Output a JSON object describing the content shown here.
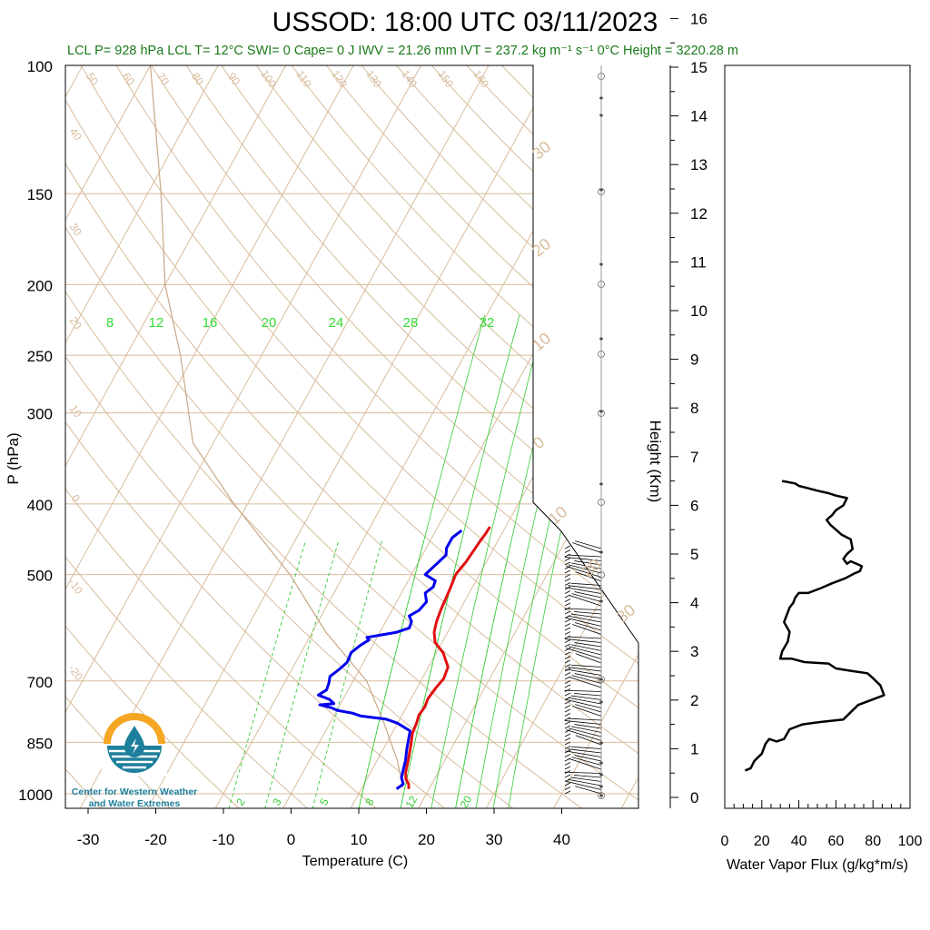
{
  "header": {
    "title": "USSOD: 18:00 UTC 03/11/2023",
    "subtitle": "LCL P= 928 hPa  LCL T= 12°C  SWI= 0  Cape= 0 J  IWV = 21.26 mm  IVT = 237.2 kg m⁻¹ s⁻¹  0°C Height = 3220.28 m"
  },
  "logo": {
    "line1": "Center for Western Weather",
    "line2": "and Water Extremes"
  },
  "colors": {
    "temperature": "#e01010",
    "dewpoint": "#0000ee",
    "isotherm": "#d8bc9c",
    "mixing_ratio": "#33cc33",
    "dry_adiabat": "#d8bc9c",
    "subtitle": "#1a7a1a",
    "logo_orange": "#f5a623",
    "logo_blue": "#1e7f9c"
  },
  "chart_data": [
    {
      "type": "line",
      "chart": "skew-T log-P sounding",
      "xlabel": "Temperature (C)",
      "ylabel": "P (hPa)",
      "right_ylabel": "Height (Km)",
      "x_ticks": [
        "-30",
        "-20",
        "-10",
        "0",
        "10",
        "20",
        "30",
        "40"
      ],
      "y_ticks": [
        "100",
        "150",
        "200",
        "250",
        "300",
        "400",
        "500",
        "700",
        "850",
        "1000"
      ],
      "height_ticks": [
        "0",
        "1",
        "2",
        "3",
        "4",
        "5",
        "6",
        "7",
        "8",
        "9",
        "10",
        "11",
        "12",
        "13",
        "14",
        "15",
        "16"
      ],
      "xlim": [
        -34,
        52
      ],
      "ylim": [
        1050,
        100
      ],
      "y_scale": "log",
      "mixing_ratio_top_labels": [
        "8",
        "12",
        "16",
        "20",
        "24",
        "28",
        "32"
      ],
      "mixing_ratio_bottom_labels": [
        "2",
        "3",
        "5",
        "8",
        "12",
        "20"
      ],
      "dry_adiabat_labels": [
        "50",
        "60",
        "70",
        "80",
        "90",
        "100",
        "110",
        "120",
        "130",
        "140",
        "150",
        "160"
      ],
      "isotherm_left_labels": [
        "40",
        "30",
        "20",
        "10",
        "0",
        "-10",
        "-20"
      ],
      "isotherm_right_labels": [
        "30",
        "20",
        "10",
        "0",
        "-10",
        "-20",
        "-30"
      ],
      "series": [
        {
          "name": "Temperature",
          "points": [
            [
              17.0,
              985
            ],
            [
              16.6,
              970
            ],
            [
              15.8,
              955
            ],
            [
              15.2,
              935
            ],
            [
              14.6,
              900
            ],
            [
              13.8,
              860
            ],
            [
              13.0,
              825
            ],
            [
              12.8,
              800
            ],
            [
              12.5,
              780
            ],
            [
              12.7,
              760
            ],
            [
              12.5,
              740
            ],
            [
              12.8,
              715
            ],
            [
              13.2,
              695
            ],
            [
              12.9,
              670
            ],
            [
              11.0,
              640
            ],
            [
              9.0,
              620
            ],
            [
              8.0,
              600
            ],
            [
              7.5,
              580
            ],
            [
              7.2,
              560
            ],
            [
              7.0,
              540
            ],
            [
              6.8,
              520
            ],
            [
              6.5,
              500
            ],
            [
              7.0,
              480
            ],
            [
              7.2,
              465
            ],
            [
              7.4,
              450
            ],
            [
              7.6,
              440
            ],
            [
              7.7,
              430
            ]
          ]
        },
        {
          "name": "Dewpoint",
          "points": [
            [
              15.2,
              985
            ],
            [
              15.8,
              970
            ],
            [
              15.0,
              950
            ],
            [
              14.6,
              925
            ],
            [
              14.2,
              900
            ],
            [
              13.5,
              870
            ],
            [
              13.0,
              845
            ],
            [
              12.5,
              820
            ],
            [
              10.0,
              800
            ],
            [
              9.0,
              795
            ],
            [
              8.0,
              790
            ],
            [
              4.0,
              782
            ],
            [
              2.5,
              775
            ],
            [
              0.0,
              768
            ],
            [
              -1.0,
              762
            ],
            [
              -3.0,
              755
            ],
            [
              -1.0,
              752
            ],
            [
              -2.0,
              742
            ],
            [
              -4.0,
              732
            ],
            [
              -3.2,
              720
            ],
            [
              -3.4,
              705
            ],
            [
              -3.8,
              690
            ],
            [
              -3.0,
              675
            ],
            [
              -2.4,
              660
            ],
            [
              -2.6,
              640
            ],
            [
              -1.8,
              625
            ],
            [
              -1.0,
              615
            ],
            [
              -1.5,
              610
            ],
            [
              0.5,
              605
            ],
            [
              2.5,
              600
            ],
            [
              4.0,
              592
            ],
            [
              3.8,
              580
            ],
            [
              3.0,
              570
            ],
            [
              4.0,
              560
            ],
            [
              4.4,
              545
            ],
            [
              3.5,
              530
            ],
            [
              4.2,
              520
            ],
            [
              4.0,
              510
            ],
            [
              2.0,
              500
            ],
            [
              2.5,
              490
            ],
            [
              3.0,
              480
            ],
            [
              3.5,
              470
            ],
            [
              3.0,
              460
            ],
            [
              3.0,
              445
            ],
            [
              3.8,
              435
            ]
          ]
        }
      ],
      "wind_barbs": "wind barb column at right edge, surface to ~6.5 km"
    },
    {
      "type": "line",
      "xlabel": "Water Vapor Flux (g/kg*m/s)",
      "x_ticks": [
        "0",
        "20",
        "40",
        "60",
        "80",
        "100"
      ],
      "xlim": [
        0,
        100
      ],
      "ylim_km": [
        0,
        16.4
      ],
      "series": [
        {
          "name": "Water Vapor Flux",
          "points": [
            [
              11,
              0.55
            ],
            [
              14,
              0.6
            ],
            [
              16,
              0.75
            ],
            [
              20,
              0.9
            ],
            [
              22,
              1.1
            ],
            [
              24,
              1.2
            ],
            [
              28,
              1.15
            ],
            [
              32,
              1.2
            ],
            [
              35,
              1.4
            ],
            [
              42,
              1.5
            ],
            [
              52,
              1.55
            ],
            [
              64,
              1.6
            ],
            [
              68,
              1.75
            ],
            [
              72,
              1.9
            ],
            [
              79,
              2.0
            ],
            [
              86,
              2.1
            ],
            [
              84,
              2.3
            ],
            [
              80,
              2.45
            ],
            [
              77,
              2.55
            ],
            [
              68,
              2.6
            ],
            [
              60,
              2.65
            ],
            [
              56,
              2.75
            ],
            [
              43,
              2.78
            ],
            [
              36,
              2.85
            ],
            [
              30,
              2.85
            ],
            [
              31,
              3.0
            ],
            [
              34,
              3.2
            ],
            [
              35,
              3.4
            ],
            [
              32,
              3.6
            ],
            [
              35,
              3.9
            ],
            [
              37,
              4.0
            ],
            [
              38,
              4.1
            ],
            [
              40,
              4.2
            ],
            [
              45,
              4.2
            ],
            [
              52,
              4.3
            ],
            [
              58,
              4.4
            ],
            [
              65,
              4.5
            ],
            [
              70,
              4.6
            ],
            [
              73,
              4.65
            ],
            [
              74,
              4.75
            ],
            [
              68,
              4.85
            ],
            [
              66,
              4.8
            ],
            [
              64,
              4.9
            ],
            [
              66,
              5.0
            ],
            [
              69,
              5.1
            ],
            [
              68,
              5.3
            ],
            [
              63,
              5.4
            ],
            [
              60,
              5.5
            ],
            [
              57,
              5.6
            ],
            [
              55,
              5.7
            ],
            [
              58,
              5.8
            ],
            [
              60,
              5.9
            ],
            [
              64,
              6.0
            ],
            [
              66,
              6.15
            ],
            [
              60,
              6.2
            ],
            [
              56,
              6.25
            ],
            [
              50,
              6.3
            ],
            [
              45,
              6.35
            ],
            [
              40,
              6.4
            ],
            [
              38,
              6.45
            ],
            [
              31,
              6.5
            ]
          ]
        }
      ]
    }
  ]
}
